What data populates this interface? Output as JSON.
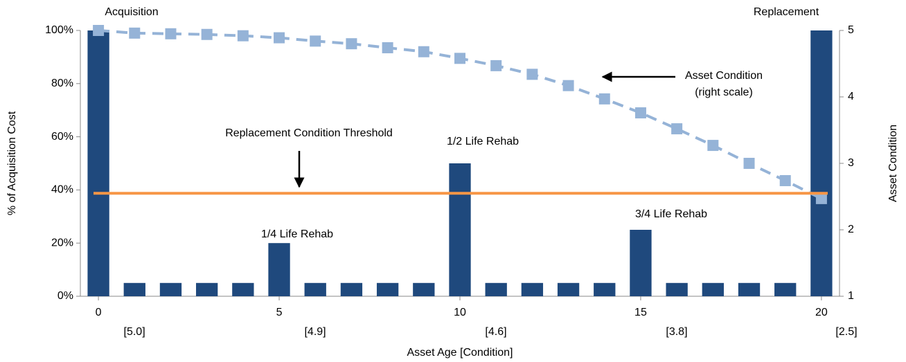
{
  "chart_data": {
    "type": "bar",
    "x": [
      0,
      1,
      2,
      3,
      4,
      5,
      6,
      7,
      8,
      9,
      10,
      11,
      12,
      13,
      14,
      15,
      16,
      17,
      18,
      19,
      20
    ],
    "xticks": [
      0,
      5,
      10,
      15,
      20
    ],
    "xtick_sublabels": [
      "[5.0]",
      "[4.9]",
      "[4.6]",
      "[3.8]",
      "[2.5]"
    ],
    "xlabel": "Asset Age [Condition]",
    "ylabel": "% of Acquisition Cost",
    "y2label": "Asset Condition",
    "ylim": [
      0,
      100
    ],
    "yticks": [
      {
        "value": 0,
        "label": "0%"
      },
      {
        "value": 20,
        "label": "20%"
      },
      {
        "value": 40,
        "label": "40%"
      },
      {
        "value": 60,
        "label": "60%"
      },
      {
        "value": 80,
        "label": "80%"
      },
      {
        "value": 100,
        "label": "100%"
      }
    ],
    "y2lim": [
      1,
      5
    ],
    "y2ticks": [
      1,
      2,
      3,
      4,
      5
    ],
    "series": [
      {
        "name": "% of Acquisition Cost",
        "type": "bar",
        "color": "#1f497d",
        "values": [
          100,
          5,
          5,
          5,
          5,
          20,
          5,
          5,
          5,
          5,
          50,
          5,
          5,
          5,
          5,
          25,
          5,
          5,
          5,
          5,
          100
        ]
      },
      {
        "name": "Asset Condition",
        "type": "line",
        "axis": "y2",
        "color": "#95b3d7",
        "values": [
          5.0,
          4.96,
          4.95,
          4.94,
          4.92,
          4.89,
          4.84,
          4.8,
          4.74,
          4.68,
          4.58,
          4.47,
          4.34,
          4.17,
          3.97,
          3.76,
          3.52,
          3.27,
          3.0,
          2.74,
          2.47
        ]
      }
    ],
    "threshold": {
      "value": 2.55,
      "axis": "y2",
      "color": "#f79646"
    },
    "annotations": [
      "Acquisition",
      "Replacement",
      "1/4 Life Rehab",
      "1/2 Life Rehab",
      "3/4 Life Rehab",
      "Replacement Condition Threshold",
      "Asset Condition",
      "(right scale)"
    ]
  }
}
